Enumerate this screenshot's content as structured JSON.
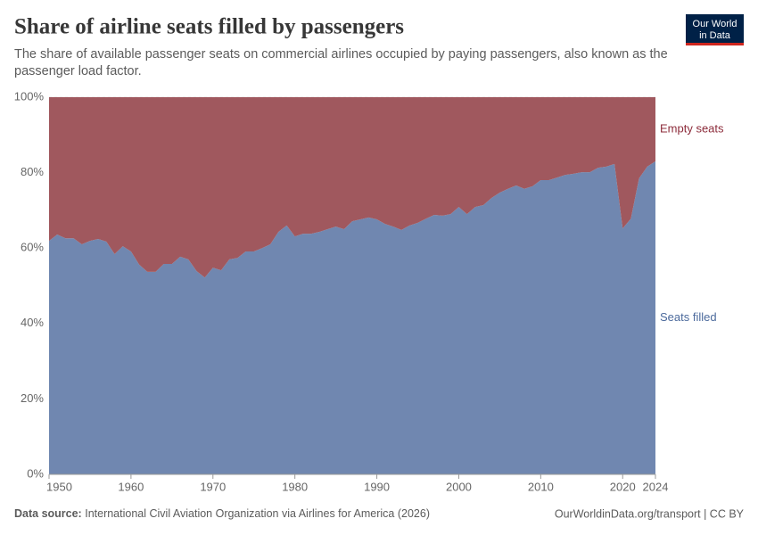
{
  "chart_data": {
    "type": "stacked-area",
    "title": "Share of airline seats filled by passengers",
    "subtitle": [
      "The share of available passenger seats on commercial airlines occupied by paying passengers, also known as the",
      "passenger load factor."
    ],
    "logo": [
      "Our World",
      "in Data"
    ],
    "source_label": "Data source:",
    "source": "International Civil Aviation Organization via Airlines for America (2026)",
    "footer_right": "OurWorldinData.org/transport | CC BY",
    "x": [
      1950,
      1951,
      1952,
      1953,
      1954,
      1955,
      1956,
      1957,
      1958,
      1959,
      1960,
      1961,
      1962,
      1963,
      1964,
      1965,
      1966,
      1967,
      1968,
      1969,
      1970,
      1971,
      1972,
      1973,
      1974,
      1975,
      1976,
      1977,
      1978,
      1979,
      1980,
      1981,
      1982,
      1983,
      1984,
      1985,
      1986,
      1987,
      1988,
      1989,
      1990,
      1991,
      1992,
      1993,
      1994,
      1995,
      1996,
      1997,
      1998,
      1999,
      2000,
      2001,
      2002,
      2003,
      2004,
      2005,
      2006,
      2007,
      2008,
      2009,
      2010,
      2011,
      2012,
      2013,
      2014,
      2015,
      2016,
      2017,
      2018,
      2019,
      2020,
      2021,
      2022,
      2023,
      2024
    ],
    "series": [
      {
        "name": "Seats filled",
        "color": "#7087b0",
        "label_color": "#4c6a9c",
        "values": [
          61.9,
          63.6,
          62.6,
          62.6,
          61,
          61.9,
          62.4,
          61.7,
          58.4,
          60.5,
          59.1,
          55.6,
          53.7,
          53.7,
          55.8,
          55.8,
          57.7,
          57,
          53.9,
          52.2,
          54.8,
          54.1,
          57,
          57.4,
          59.1,
          59.1,
          60,
          61,
          64.3,
          66,
          63.1,
          63.8,
          63.8,
          64.3,
          65,
          65.7,
          65,
          67.1,
          67.6,
          68.1,
          67.6,
          66.4,
          65.7,
          64.8,
          66,
          66.7,
          67.8,
          68.8,
          68.6,
          69,
          70.9,
          69,
          70.9,
          71.4,
          73.3,
          74.7,
          75.7,
          76.6,
          75.7,
          76.4,
          78,
          78,
          78.7,
          79.4,
          79.7,
          80.1,
          80.1,
          81.3,
          81.6,
          82.3,
          65.2,
          67.8,
          78.5,
          81.6,
          83
        ]
      },
      {
        "name": "Empty seats",
        "color": "#a0585e",
        "label_color": "#8c2b3a",
        "values": [
          38.1,
          36.4,
          37.4,
          37.4,
          39,
          38.1,
          37.6,
          38.3,
          41.6,
          39.5,
          40.9,
          44.4,
          46.3,
          46.3,
          44.2,
          44.2,
          42.3,
          43,
          46.1,
          47.8,
          45.2,
          45.9,
          43,
          42.6,
          40.9,
          40.9,
          40,
          39,
          35.7,
          34,
          36.9,
          36.2,
          36.2,
          35.7,
          35,
          34.3,
          35,
          32.9,
          32.4,
          31.9,
          32.4,
          33.6,
          34.3,
          35.2,
          34,
          33.3,
          32.2,
          31.2,
          31.4,
          31,
          29.1,
          31,
          29.1,
          28.6,
          26.7,
          25.3,
          24.3,
          23.4,
          24.3,
          23.6,
          22,
          22,
          21.3,
          20.6,
          20.3,
          19.9,
          19.9,
          18.7,
          18.4,
          17.7,
          34.8,
          32.2,
          21.5,
          18.4,
          17
        ]
      }
    ],
    "xlim": [
      1950,
      2024
    ],
    "xticks": [
      1950,
      1960,
      1970,
      1980,
      1990,
      2000,
      2010,
      2020,
      2024
    ],
    "ylim": [
      0,
      100
    ],
    "yticks": [
      {
        "value": 0,
        "label": "0%"
      },
      {
        "value": 20,
        "label": "20%"
      },
      {
        "value": 40,
        "label": "40%"
      },
      {
        "value": 60,
        "label": "60%"
      },
      {
        "value": 80,
        "label": "80%"
      },
      {
        "value": 100,
        "label": "100%"
      }
    ],
    "grid": true
  }
}
